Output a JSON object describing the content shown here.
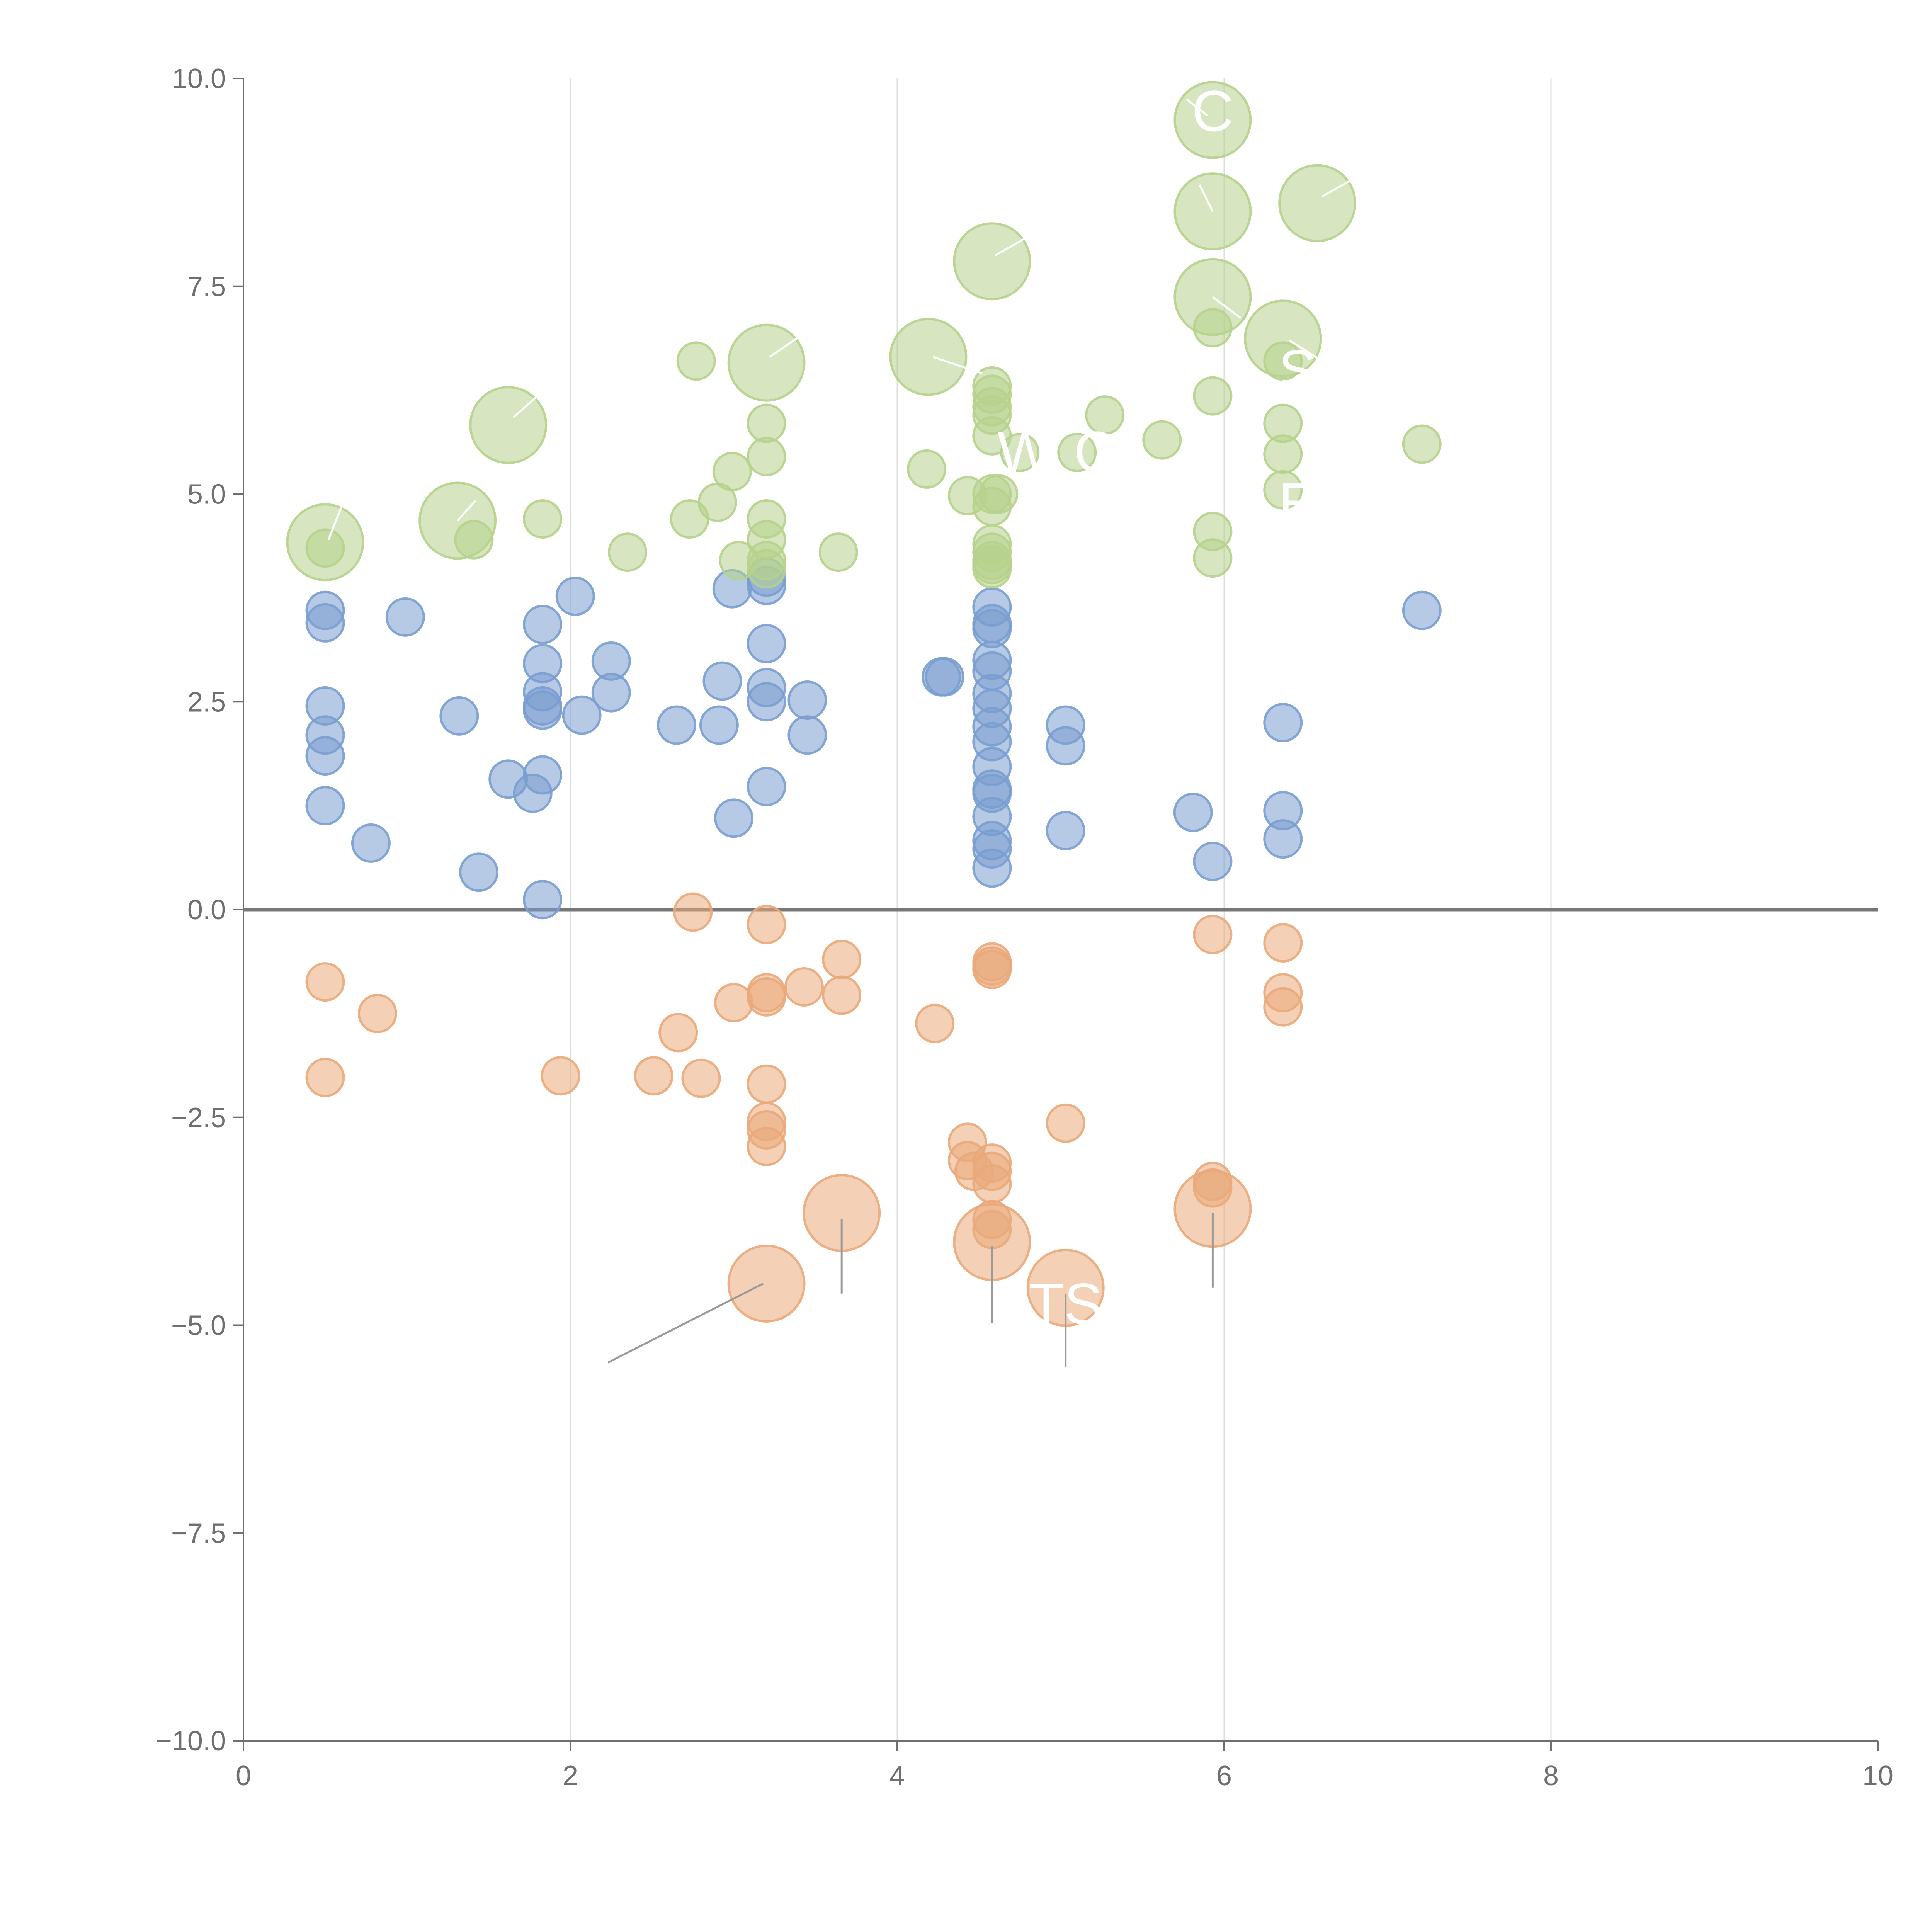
{
  "chart_data": {
    "type": "scatter",
    "title": "",
    "xlabel": "",
    "ylabel": "",
    "xlim": [
      0,
      10
    ],
    "ylim": [
      -10,
      10
    ],
    "x_ticks": [
      0,
      2,
      4,
      6,
      8,
      10
    ],
    "x_tick_labels": [
      "0",
      "2",
      "4",
      "6",
      "8",
      "10"
    ],
    "y_ticks": [
      -10,
      -7.5,
      -5,
      -2.5,
      0,
      2.5,
      5,
      7.5,
      10
    ],
    "y_tick_labels": [
      "−10.0",
      "−7.5",
      "−5.0",
      "−2.5",
      "0.0",
      "2.5",
      "5.0",
      "7.5",
      "10.0"
    ],
    "vertical_grid": true,
    "zero_line": true,
    "colors": {
      "blue": "#7a9dd0",
      "green": "#b6d28c",
      "orange": "#e9a97a",
      "axis": "#6f6f6f",
      "grid": "#dddddd",
      "zero_line": "#777777",
      "leader_light": "#ffffff",
      "leader_dark": "#9a9a9a",
      "label": "#ffffff"
    },
    "series": [
      {
        "name": "blue",
        "values": [
          [
            0.5,
            3.6
          ],
          [
            0.5,
            3.45
          ],
          [
            0.5,
            2.45
          ],
          [
            0.5,
            2.1
          ],
          [
            0.5,
            1.85
          ],
          [
            0.5,
            1.25
          ],
          [
            0.78,
            0.8
          ],
          [
            0.99,
            3.52
          ],
          [
            1.32,
            2.33
          ],
          [
            1.44,
            0.45
          ],
          [
            1.62,
            1.57
          ],
          [
            1.77,
            1.4
          ],
          [
            1.83,
            3.43
          ],
          [
            1.83,
            2.96
          ],
          [
            1.83,
            2.62
          ],
          [
            1.83,
            2.45
          ],
          [
            1.83,
            2.4
          ],
          [
            1.83,
            1.62
          ],
          [
            1.83,
            0.12
          ],
          [
            2.03,
            3.77
          ],
          [
            2.07,
            2.34
          ],
          [
            2.25,
            2.99
          ],
          [
            2.25,
            2.61
          ],
          [
            2.65,
            2.22
          ],
          [
            2.91,
            2.22
          ],
          [
            2.93,
            2.75
          ],
          [
            2.99,
            3.86
          ],
          [
            3.0,
            1.1
          ],
          [
            3.2,
            4.0
          ],
          [
            3.2,
            3.9
          ],
          [
            3.2,
            3.2
          ],
          [
            3.2,
            2.67
          ],
          [
            3.2,
            2.5
          ],
          [
            3.2,
            1.48
          ],
          [
            3.45,
            2.52
          ],
          [
            3.45,
            2.1
          ],
          [
            4.27,
            2.8
          ],
          [
            4.29,
            2.8
          ],
          [
            4.58,
            3.64
          ],
          [
            4.58,
            3.44
          ],
          [
            4.58,
            3.38
          ],
          [
            4.58,
            3.0
          ],
          [
            4.58,
            2.87
          ],
          [
            4.58,
            2.6
          ],
          [
            4.58,
            2.42
          ],
          [
            4.58,
            2.2
          ],
          [
            4.58,
            2.02
          ],
          [
            4.58,
            1.72
          ],
          [
            4.58,
            1.45
          ],
          [
            4.58,
            1.4
          ],
          [
            4.58,
            1.12
          ],
          [
            4.58,
            0.83
          ],
          [
            4.58,
            0.73
          ],
          [
            4.58,
            0.5
          ],
          [
            5.03,
            2.22
          ],
          [
            5.03,
            1.97
          ],
          [
            5.03,
            0.95
          ],
          [
            5.81,
            1.17
          ],
          [
            5.93,
            0.58
          ],
          [
            6.36,
            2.25
          ],
          [
            6.36,
            1.19
          ],
          [
            6.36,
            0.85
          ],
          [
            7.21,
            3.6
          ]
        ]
      },
      {
        "name": "green",
        "values": [
          [
            0.5,
            4.35
          ],
          [
            1.41,
            4.45
          ],
          [
            1.83,
            4.7
          ],
          [
            2.35,
            4.3
          ],
          [
            2.73,
            4.7
          ],
          [
            2.77,
            6.6
          ],
          [
            2.9,
            4.9
          ],
          [
            2.99,
            5.27
          ],
          [
            3.03,
            4.2
          ],
          [
            3.2,
            5.85
          ],
          [
            3.2,
            5.45
          ],
          [
            3.2,
            4.7
          ],
          [
            3.2,
            4.45
          ],
          [
            3.2,
            4.2
          ],
          [
            3.2,
            4.1
          ],
          [
            3.64,
            4.3
          ],
          [
            4.18,
            5.3
          ],
          [
            4.43,
            4.98
          ],
          [
            4.58,
            6.3
          ],
          [
            4.58,
            6.2
          ],
          [
            4.58,
            6.05
          ],
          [
            4.58,
            5.95
          ],
          [
            4.58,
            5.7
          ],
          [
            4.58,
            5.0
          ],
          [
            4.58,
            4.85
          ],
          [
            4.58,
            4.4
          ],
          [
            4.58,
            4.3
          ],
          [
            4.58,
            4.2
          ],
          [
            4.58,
            4.15
          ],
          [
            4.58,
            4.1
          ],
          [
            4.62,
            5.0
          ],
          [
            4.75,
            5.5
          ],
          [
            5.1,
            5.5
          ],
          [
            5.27,
            5.95
          ],
          [
            5.62,
            5.65
          ],
          [
            5.93,
            7.0
          ],
          [
            5.93,
            6.18
          ],
          [
            5.93,
            4.55
          ],
          [
            5.93,
            4.23
          ],
          [
            6.36,
            6.6
          ],
          [
            6.36,
            5.85
          ],
          [
            6.36,
            5.48
          ],
          [
            6.36,
            5.05
          ],
          [
            7.21,
            5.6
          ]
        ]
      },
      {
        "name": "orange",
        "values": [
          [
            0.5,
            -0.87
          ],
          [
            0.5,
            -2.02
          ],
          [
            0.82,
            -1.25
          ],
          [
            1.94,
            -2.0
          ],
          [
            2.51,
            -2.0
          ],
          [
            2.66,
            -1.48
          ],
          [
            2.75,
            -0.03
          ],
          [
            2.8,
            -2.03
          ],
          [
            3.0,
            -1.12
          ],
          [
            3.2,
            -0.18
          ],
          [
            3.2,
            -1.0
          ],
          [
            3.2,
            -1.05
          ],
          [
            3.2,
            -2.1
          ],
          [
            3.2,
            -2.55
          ],
          [
            3.2,
            -2.65
          ],
          [
            3.2,
            -2.85
          ],
          [
            3.43,
            -0.93
          ],
          [
            3.66,
            -0.6
          ],
          [
            3.66,
            -1.03
          ],
          [
            4.23,
            -1.37
          ],
          [
            4.43,
            -2.8
          ],
          [
            4.43,
            -3.02
          ],
          [
            4.47,
            -3.15
          ],
          [
            4.58,
            -0.63
          ],
          [
            4.58,
            -0.68
          ],
          [
            4.58,
            -0.72
          ],
          [
            4.58,
            -3.05
          ],
          [
            4.58,
            -3.15
          ],
          [
            4.58,
            -3.3
          ],
          [
            4.58,
            -3.73
          ],
          [
            4.58,
            -3.85
          ],
          [
            5.03,
            -2.57
          ],
          [
            5.93,
            -0.3
          ],
          [
            5.93,
            -3.27
          ],
          [
            5.93,
            -3.35
          ],
          [
            6.36,
            -0.4
          ],
          [
            6.36,
            -1.0
          ],
          [
            6.36,
            -1.17
          ]
        ]
      }
    ],
    "highlights": [
      {
        "series": "green",
        "x": 0.5,
        "y": 4.42,
        "size": "large",
        "leader": [
          0.52,
          4.45,
          0.62,
          4.95
        ],
        "leader_color": "light"
      },
      {
        "series": "green",
        "x": 1.31,
        "y": 4.68,
        "size": "large",
        "leader": [
          1.31,
          4.68,
          1.42,
          4.92
        ],
        "leader_color": "light"
      },
      {
        "series": "green",
        "x": 1.62,
        "y": 5.83,
        "size": "large",
        "leader": [
          1.65,
          5.92,
          1.84,
          6.25
        ],
        "leader_color": "light"
      },
      {
        "series": "green",
        "x": 3.2,
        "y": 6.58,
        "size": "large",
        "leader": [
          3.22,
          6.65,
          3.42,
          6.92
        ],
        "leader_color": "light"
      },
      {
        "series": "green",
        "x": 4.19,
        "y": 6.65,
        "size": "large",
        "leader": [
          4.22,
          6.65,
          4.52,
          6.45
        ],
        "leader_color": "light"
      },
      {
        "series": "green",
        "x": 4.58,
        "y": 7.8,
        "size": "large",
        "leader": [
          4.6,
          7.87,
          4.82,
          8.12
        ],
        "leader_color": "light"
      },
      {
        "series": "green",
        "x": 5.93,
        "y": 9.5,
        "size": "large",
        "leader": [
          5.9,
          9.55,
          5.77,
          9.75
        ],
        "leader_color": "light"
      },
      {
        "series": "green",
        "x": 5.93,
        "y": 8.4,
        "size": "large",
        "leader": [
          5.93,
          8.4,
          5.85,
          8.72
        ],
        "leader_color": "light"
      },
      {
        "series": "green",
        "x": 6.57,
        "y": 8.5,
        "size": "large",
        "leader": [
          6.6,
          8.58,
          6.78,
          8.78
        ],
        "leader_color": "light"
      },
      {
        "series": "green",
        "x": 5.93,
        "y": 7.37,
        "size": "large",
        "leader": [
          5.93,
          7.37,
          6.1,
          7.12
        ],
        "leader_color": "light"
      },
      {
        "series": "green",
        "x": 6.36,
        "y": 6.87,
        "size": "large",
        "leader": [
          6.4,
          6.85,
          6.6,
          6.6
        ],
        "leader_color": "light"
      },
      {
        "series": "orange",
        "x": 3.2,
        "y": -4.5,
        "size": "large",
        "leader": [
          3.18,
          -4.5,
          2.23,
          -5.45
        ],
        "leader_color": "dark"
      },
      {
        "series": "orange",
        "x": 3.66,
        "y": -3.65,
        "size": "large",
        "leader": [
          3.66,
          -3.72,
          3.66,
          -4.62
        ],
        "leader_color": "dark"
      },
      {
        "series": "orange",
        "x": 4.58,
        "y": -4.0,
        "size": "large",
        "leader": [
          4.58,
          -4.05,
          4.58,
          -4.97
        ],
        "leader_color": "dark"
      },
      {
        "series": "orange",
        "x": 5.03,
        "y": -4.55,
        "size": "large",
        "leader": [
          5.03,
          -4.62,
          5.03,
          -5.5
        ],
        "leader_color": "dark"
      },
      {
        "series": "orange",
        "x": 5.93,
        "y": -3.6,
        "size": "large",
        "leader": [
          5.93,
          -3.65,
          5.93,
          -4.55
        ],
        "leader_color": "dark"
      }
    ],
    "annotations": [
      {
        "text": "C",
        "x": 5.93,
        "y": 9.6
      },
      {
        "text": "W",
        "x": 4.78,
        "y": 5.5
      },
      {
        "text": "O",
        "x": 5.22,
        "y": 5.5
      },
      {
        "text": "S",
        "x": 6.45,
        "y": 6.48
      },
      {
        "text": "E",
        "x": 6.45,
        "y": 4.88
      },
      {
        "text": "TS",
        "x": 5.03,
        "y": -4.75
      }
    ]
  }
}
